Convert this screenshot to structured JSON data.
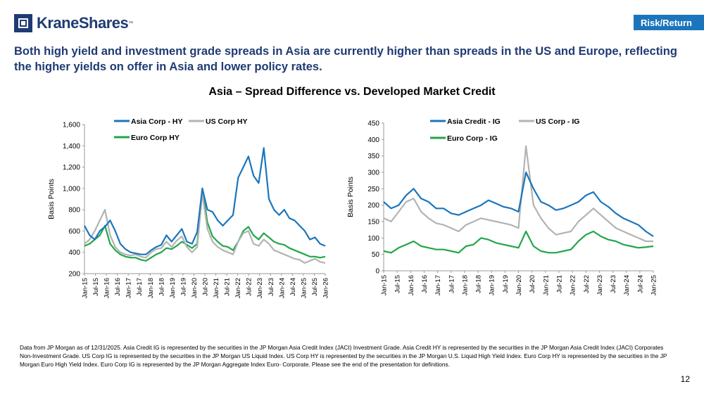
{
  "brand": {
    "name": "KraneShares",
    "tm": "™"
  },
  "section_tag": "Risk/Return",
  "headline": "Both high yield and investment grade spreads in Asia are currently higher than spreads in the US and Europe, reflecting the higher yields on offer in Asia and lower policy rates.",
  "chart_title": "Asia – Spread Difference vs. Developed Market Credit",
  "colors": {
    "asia": "#1b75bc",
    "us": "#b3b3b3",
    "euro": "#22a64a",
    "brand": "#1f3b73"
  },
  "chart_data": [
    {
      "type": "line",
      "ylabel": "Basis Points",
      "ylim": [
        200,
        1600
      ],
      "yticks": [
        "200",
        "400",
        "600",
        "800",
        "1,000",
        "1,200",
        "1,400",
        "1,600"
      ],
      "xticks": [
        "Jan-15",
        "Jul-15",
        "Jan-16",
        "Jul-16",
        "Jan-17",
        "Jul-17",
        "Jan-18",
        "Jul-18",
        "Jan-19",
        "Jul-19",
        "Jan-20",
        "Jul-20",
        "Jan-21",
        "Jul-21",
        "Jan-22",
        "Jul-22",
        "Jan-23",
        "Jul-23",
        "Jan-24",
        "Jul-24",
        "Jan-25",
        "Jul-25",
        "Jan-26"
      ],
      "series": [
        {
          "name": "Asia Corp - HY",
          "color": "#1b75bc",
          "values": [
            650,
            560,
            520,
            600,
            640,
            700,
            600,
            480,
            430,
            400,
            390,
            380,
            380,
            420,
            450,
            470,
            560,
            500,
            560,
            620,
            500,
            480,
            590,
            1000,
            800,
            780,
            700,
            650,
            700,
            750,
            1100,
            1200,
            1300,
            1120,
            1050,
            1380,
            900,
            800,
            750,
            800,
            720,
            700,
            650,
            600,
            520,
            540,
            480,
            460
          ]
        },
        {
          "name": "US Corp HY",
          "color": "#b3b3b3",
          "values": [
            480,
            520,
            600,
            700,
            800,
            560,
            450,
            400,
            380,
            370,
            380,
            360,
            350,
            400,
            430,
            440,
            500,
            450,
            510,
            550,
            450,
            400,
            450,
            950,
            620,
            500,
            450,
            420,
            400,
            380,
            500,
            580,
            600,
            480,
            460,
            520,
            480,
            420,
            400,
            380,
            360,
            340,
            330,
            300,
            320,
            340,
            310,
            300
          ]
        },
        {
          "name": "Euro Corp HY",
          "color": "#22a64a",
          "values": [
            460,
            480,
            520,
            560,
            650,
            480,
            420,
            380,
            360,
            350,
            350,
            330,
            320,
            350,
            380,
            400,
            440,
            430,
            460,
            500,
            470,
            440,
            480,
            1000,
            680,
            550,
            500,
            460,
            450,
            420,
            500,
            600,
            640,
            560,
            520,
            580,
            540,
            500,
            480,
            470,
            440,
            420,
            400,
            380,
            360,
            360,
            350,
            360
          ]
        }
      ],
      "legend": "top"
    },
    {
      "type": "line",
      "ylabel": "Basis Points",
      "ylim": [
        0,
        450
      ],
      "yticks": [
        "0",
        "50",
        "100",
        "150",
        "200",
        "250",
        "300",
        "350",
        "400",
        "450"
      ],
      "xticks": [
        "Jan-15",
        "Jul-15",
        "Jan-16",
        "Jul-16",
        "Jan-17",
        "Jul-17",
        "Jan-18",
        "Jul-18",
        "Jan-19",
        "Jul-19",
        "Jan-20",
        "Jul-20",
        "Jan-21",
        "Jul-21",
        "Jan-22",
        "Jul-22",
        "Jan-23",
        "Jul-23",
        "Jan-24",
        "Jul-24",
        "Jan-25"
      ],
      "series": [
        {
          "name": "Asia Credit - IG",
          "color": "#1b75bc",
          "values": [
            210,
            190,
            200,
            230,
            250,
            220,
            210,
            190,
            190,
            175,
            170,
            180,
            190,
            200,
            215,
            205,
            195,
            190,
            180,
            300,
            250,
            210,
            200,
            185,
            190,
            200,
            210,
            230,
            240,
            210,
            195,
            175,
            160,
            150,
            140,
            120,
            105
          ]
        },
        {
          "name": "US Corp - IG",
          "color": "#b3b3b3",
          "values": [
            160,
            150,
            180,
            210,
            220,
            180,
            160,
            145,
            140,
            130,
            120,
            140,
            150,
            160,
            155,
            150,
            145,
            140,
            130,
            380,
            200,
            160,
            130,
            110,
            115,
            120,
            150,
            170,
            190,
            170,
            150,
            130,
            120,
            110,
            100,
            90,
            90
          ]
        },
        {
          "name": "Euro Corp - IG",
          "color": "#22a64a",
          "values": [
            60,
            55,
            70,
            80,
            90,
            75,
            70,
            65,
            65,
            60,
            55,
            75,
            80,
            100,
            95,
            85,
            80,
            75,
            70,
            120,
            75,
            60,
            55,
            55,
            60,
            65,
            90,
            110,
            120,
            105,
            95,
            90,
            80,
            75,
            70,
            72,
            75
          ]
        }
      ],
      "legend": "top"
    }
  ],
  "footnote": "Data from JP Morgan as of 12/31/2025. Asia Credit IG is represented by the securities in the JP Morgan Asia Credit Index (JACI) Investment Grade. Asia Credit HY is represented by the securities in the JP Morgan Asia Credit Index (JACI) Corporates Non-Investment Grade. US Corp IG is represented by the securities in the JP Morgan US Liquid Index. US Corp HY is represented by the securities in the JP Morgan  U.S. Liquid High Yield Index. Euro Corp HY is represented by the securities in the JP Morgan Euro High Yield Index. Euro Corp IG is represented by the JP Morgan Aggregate Index Euro- Corporate. Please see the end of the presentation for definitions.",
  "page_number": "12"
}
